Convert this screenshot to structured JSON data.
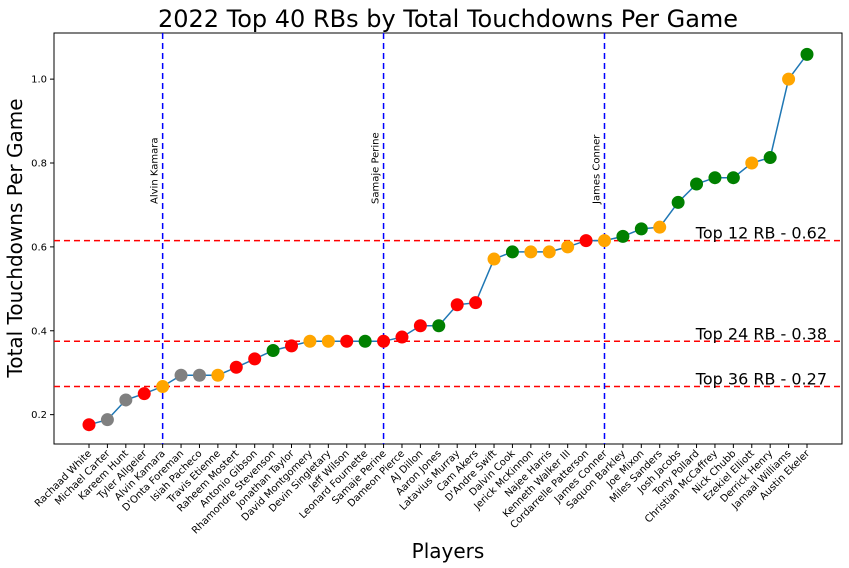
{
  "chart_data": {
    "type": "line",
    "title": "2022 Top 40 RBs by Total Touchdowns Per Game",
    "xlabel": "Players",
    "ylabel": "Total Touchdowns Per Game",
    "ylim": [
      0.13,
      1.11
    ],
    "yticks": [
      "0.2",
      "0.4",
      "0.6",
      "0.8",
      "1.0"
    ],
    "grid": false,
    "line_color": "#1f77b4",
    "marker_colors": {
      "red": "#ff0000",
      "gray": "#808080",
      "orange": "#ffa500",
      "green": "#008000"
    },
    "players": [
      "Rachaad White",
      "Michael Carter",
      "Kareem Hunt",
      "Tyler Allgeier",
      "Alvin Kamara",
      "D'Onta Foreman",
      "Isiah Pacheco",
      "Travis Etienne",
      "Raheem Mostert",
      "Antonio Gibson",
      "Rhamondre Stevenson",
      "Jonathan Taylor",
      "David Montgomery",
      "Devin Singletary",
      "Jeff Wilson",
      "Leonard Fournette",
      "Samaje Perine",
      "Dameon Pierce",
      "AJ Dillon",
      "Aaron Jones",
      "Latavius Murray",
      "Cam Akers",
      "D'Andre Swift",
      "Dalvin Cook",
      "Jerick McKinnon",
      "Najee Harris",
      "Kenneth Walker III",
      "Cordarrelle Patterson",
      "James Conner",
      "Saquon Barkley",
      "Joe Mixon",
      "Miles Sanders",
      "Josh Jacobs",
      "Tony Pollard",
      "Christian McCaffrey",
      "Nick Chubb",
      "Ezekiel Elliott",
      "Derrick Henry",
      "Jamaal Williams",
      "Austin Ekeler"
    ],
    "values": [
      0.176,
      0.188,
      0.235,
      0.25,
      0.267,
      0.294,
      0.294,
      0.294,
      0.313,
      0.333,
      0.353,
      0.364,
      0.375,
      0.375,
      0.375,
      0.375,
      0.375,
      0.385,
      0.412,
      0.412,
      0.462,
      0.467,
      0.571,
      0.588,
      0.588,
      0.588,
      0.6,
      0.615,
      0.615,
      0.625,
      0.643,
      0.647,
      0.706,
      0.75,
      0.765,
      0.765,
      0.8,
      0.813,
      1.0,
      1.059
    ],
    "marker_color_names": [
      "red",
      "gray",
      "gray",
      "red",
      "orange",
      "gray",
      "gray",
      "orange",
      "red",
      "red",
      "green",
      "red",
      "orange",
      "orange",
      "red",
      "green",
      "red",
      "red",
      "red",
      "green",
      "red",
      "red",
      "orange",
      "green",
      "orange",
      "orange",
      "orange",
      "red",
      "orange",
      "green",
      "green",
      "orange",
      "green",
      "green",
      "green",
      "green",
      "orange",
      "green",
      "orange",
      "green"
    ],
    "vertical_lines": [
      {
        "player": "Alvin Kamara",
        "label": "Alvin Kamara"
      },
      {
        "player": "Samaje Perine",
        "label": "Samaje Perine"
      },
      {
        "player": "James Conner",
        "label": "James Conner"
      }
    ],
    "horizontal_lines": [
      {
        "y": 0.615,
        "label": "Top 12 RB - 0.62"
      },
      {
        "y": 0.375,
        "label": "Top 24 RB - 0.38"
      },
      {
        "y": 0.267,
        "label": "Top 36 RB - 0.27"
      }
    ]
  }
}
